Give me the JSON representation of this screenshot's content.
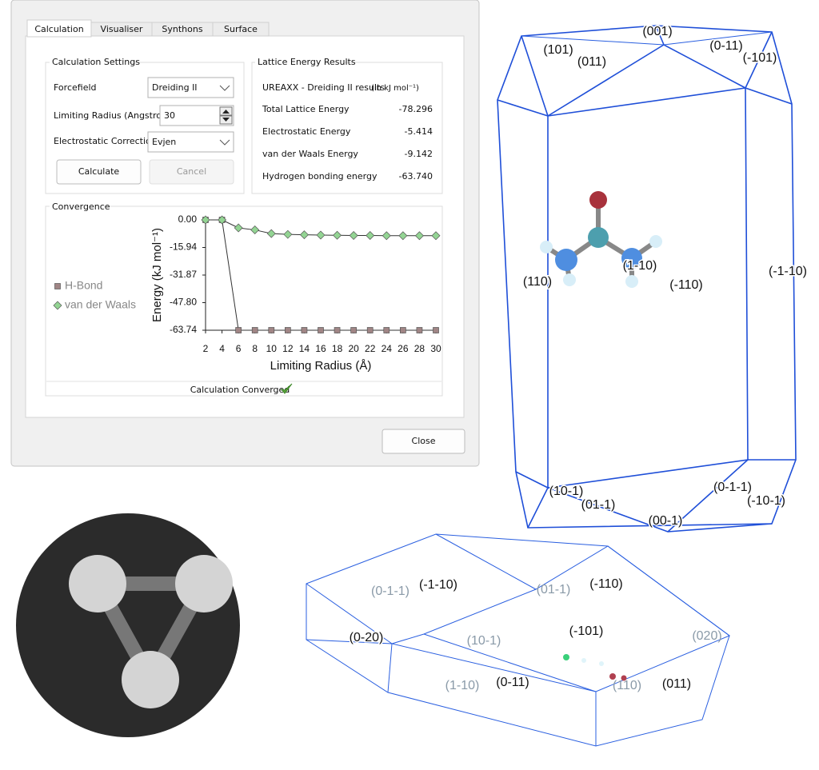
{
  "tabs": [
    "Calculation",
    "Visualiser",
    "Synthons",
    "Surface"
  ],
  "settings": {
    "title": "Calculation Settings",
    "forcefield_label": "Forcefield",
    "forcefield": "Dreiding II",
    "radius_label": "Limiting Radius (Angstrom)",
    "radius": "30",
    "correction_label": "Electrostatic Correction",
    "correction": "Evjen",
    "calculate": "Calculate",
    "cancel": "Cancel"
  },
  "results": {
    "title": "Lattice Energy Results",
    "heading": "UREAXX - Dreiding II results",
    "units": "(in kJ mol⁻¹)",
    "rows": [
      [
        "Total Lattice Energy",
        "-78.296"
      ],
      [
        "Electrostatic Energy",
        "-5.414"
      ],
      [
        "van der Waals Energy",
        "-9.142"
      ],
      [
        "Hydrogen bonding energy",
        "-63.740"
      ]
    ]
  },
  "convergence": {
    "title": "Convergence",
    "status": "Calculation Converged",
    "chart_data": {
      "type": "line",
      "y_label": "Energy (kJ mol⁻¹)",
      "x_label": "Limiting Radius (Å)",
      "x": [
        2,
        4,
        6,
        8,
        10,
        12,
        14,
        16,
        18,
        20,
        22,
        24,
        26,
        28,
        30
      ],
      "series": [
        {
          "name": "H-Bond",
          "color": "#a08585",
          "marker": "square",
          "values": [
            0,
            0,
            -63.74,
            -63.74,
            -63.74,
            -63.74,
            -63.74,
            -63.74,
            -63.74,
            -63.74,
            -63.74,
            -63.74,
            -63.74,
            -63.74,
            -63.74
          ]
        },
        {
          "name": "van der Waals",
          "color": "#93d493",
          "marker": "diamond",
          "values": [
            0,
            0,
            -4.6,
            -5.8,
            -7.9,
            -8.4,
            -8.6,
            -8.8,
            -8.9,
            -9.0,
            -9.0,
            -9.1,
            -9.1,
            -9.1,
            -9.142
          ]
        }
      ],
      "xlim": [
        2,
        30
      ],
      "xticks": [
        2,
        4,
        6,
        8,
        10,
        12,
        14,
        16,
        18,
        20,
        22,
        24,
        26,
        28,
        30
      ],
      "ylim": [
        -63.74,
        0
      ],
      "yticks": [
        {
          "value": 0,
          "label": "0.00"
        },
        -15.94,
        -31.87,
        {
          "value": -47.8,
          "label": "-47.80"
        },
        -63.74
      ],
      "legend": "left"
    }
  },
  "close": "Close",
  "crystal_top": {
    "faces": [
      "(001)",
      "(101)",
      "(011)",
      "(0-11)",
      "(-101)",
      "(110)",
      "(1-10)",
      "(-110)",
      "(-1-10)",
      "(10-1)",
      "(01-1)",
      "(00-1)",
      "(0-1-1)",
      "(-10-1)"
    ]
  },
  "crystal_bottom": {
    "faces": [
      "(0-1-1)",
      "(-1-10)",
      "(01-1)",
      "(-110)",
      "(-101)",
      "(0-20)",
      "(10-1)",
      "(020)",
      "(1-10)",
      "(0-11)",
      "(110)",
      "(011)"
    ]
  }
}
